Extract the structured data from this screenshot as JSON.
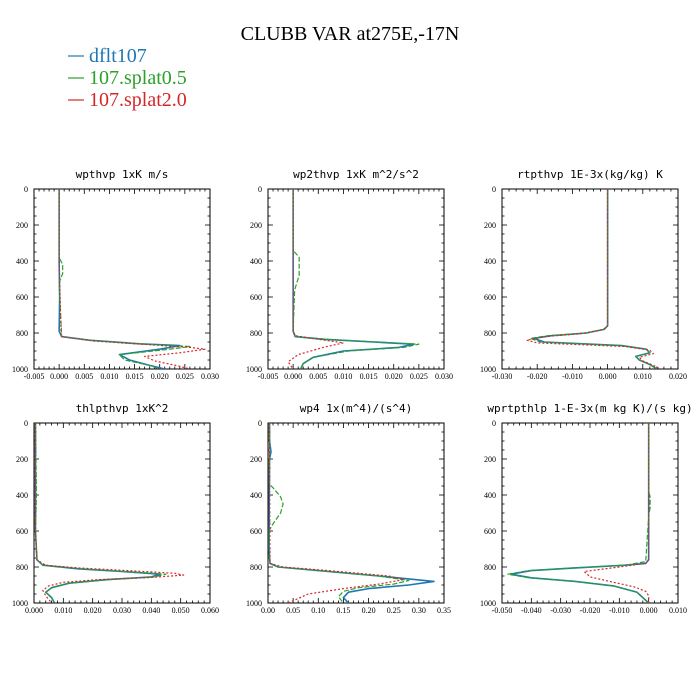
{
  "title": "CLUBB VAR at275E,-17N",
  "legend": [
    {
      "label": "dflt107",
      "color": "#1f77b4",
      "dash": "solid"
    },
    {
      "label": "107.splat0.5",
      "color": "#2ca02c",
      "dash": "long"
    },
    {
      "label": "107.splat2.0",
      "color": "#d62728",
      "dash": "short"
    }
  ],
  "chart_data": [
    {
      "type": "line",
      "title": "wpthvp  1xK m/s",
      "xlim": [
        -0.005,
        0.03
      ],
      "xticks": [
        -0.005,
        0.0,
        0.005,
        0.01,
        0.015,
        0.02,
        0.025,
        0.03
      ],
      "xtick_labels": [
        "-0.005",
        "0.000",
        "0.005",
        "0.010",
        "0.015",
        "0.020",
        "0.025",
        "0.030"
      ],
      "ylim": [
        1000,
        0
      ],
      "yticks": [
        0,
        200,
        400,
        600,
        800,
        1000
      ],
      "series": [
        {
          "name": "dflt107",
          "x": [
            0,
            0,
            0.0001,
            0,
            0.0005,
            0.006,
            0.016,
            0.024,
            0.02,
            0.012,
            0.014,
            0.018,
            0.021
          ],
          "y": [
            0,
            400,
            600,
            790,
            820,
            840,
            860,
            870,
            890,
            920,
            950,
            980,
            1000
          ]
        },
        {
          "name": "107.splat0.5",
          "x": [
            0,
            0,
            0.0007,
            0.0007,
            0,
            0.0005,
            0.006,
            0.016,
            0.026,
            0.022,
            0.012,
            0.013,
            0.018,
            0.02
          ],
          "y": [
            0,
            380,
            420,
            470,
            520,
            820,
            840,
            860,
            875,
            890,
            920,
            950,
            980,
            1000
          ]
        },
        {
          "name": "107.splat2.0",
          "x": [
            0,
            0,
            0.0004,
            0.007,
            0.018,
            0.026,
            0.029,
            0.024,
            0.017,
            0.019,
            0.024,
            0.026
          ],
          "y": [
            0,
            400,
            820,
            845,
            865,
            880,
            890,
            910,
            930,
            955,
            985,
            1000
          ]
        }
      ]
    },
    {
      "type": "line",
      "title": "wp2thvp  1xK m^2/s^2",
      "xlim": [
        -0.005,
        0.03
      ],
      "xticks": [
        -0.005,
        0.0,
        0.005,
        0.01,
        0.015,
        0.02,
        0.025,
        0.03
      ],
      "xtick_labels": [
        "-0.005",
        "0.000",
        "0.005",
        "0.010",
        "0.015",
        "0.020",
        "0.025",
        "0.030"
      ],
      "ylim": [
        1000,
        0
      ],
      "yticks": [
        0,
        200,
        400,
        600,
        800,
        1000
      ],
      "series": [
        {
          "name": "dflt107",
          "x": [
            0,
            0,
            0.0004,
            0.006,
            0.016,
            0.024,
            0.021,
            0.01,
            0.004,
            0.002,
            0.0015
          ],
          "y": [
            0,
            790,
            820,
            835,
            850,
            862,
            880,
            900,
            935,
            970,
            1000
          ]
        },
        {
          "name": "107.splat0.5",
          "x": [
            0,
            0,
            0.0012,
            0.0012,
            0.0003,
            0,
            0.0005,
            0.007,
            0.017,
            0.025,
            0.022,
            0.011,
            0.004,
            0.002,
            0.0015
          ],
          "y": [
            0,
            340,
            380,
            480,
            560,
            790,
            820,
            835,
            850,
            862,
            880,
            900,
            935,
            970,
            1000
          ]
        },
        {
          "name": "107.splat2.0",
          "x": [
            0,
            0,
            0.0004,
            0.005,
            0.01,
            0.006,
            0.001,
            -0.001,
            0.0
          ],
          "y": [
            0,
            790,
            815,
            835,
            855,
            880,
            920,
            960,
            1000
          ]
        }
      ]
    },
    {
      "type": "line",
      "title": "rtpthvp  1E-3x(kg/kg) K",
      "xlim": [
        -0.03,
        0.02
      ],
      "xticks": [
        -0.03,
        -0.02,
        -0.01,
        0.0,
        0.01,
        0.02
      ],
      "xtick_labels": [
        "-0.030",
        "-0.020",
        "-0.010",
        "0.000",
        "0.010",
        "0.020"
      ],
      "ylim": [
        1000,
        0
      ],
      "yticks": [
        0,
        200,
        400,
        600,
        800,
        1000
      ],
      "series": [
        {
          "name": "dflt107",
          "x": [
            0,
            0,
            -0.001,
            -0.006,
            -0.016,
            -0.021,
            -0.018,
            0.004,
            0.011,
            0.012,
            0.008,
            0.009,
            0.012,
            0.014
          ],
          "y": [
            0,
            760,
            780,
            800,
            815,
            830,
            850,
            870,
            890,
            910,
            930,
            950,
            975,
            1000
          ]
        },
        {
          "name": "107.splat0.5",
          "x": [
            0,
            0,
            -0.001,
            -0.006,
            -0.017,
            -0.022,
            -0.019,
            0.004,
            0.011,
            0.012,
            0.008,
            0.009,
            0.012,
            0.014
          ],
          "y": [
            0,
            760,
            780,
            800,
            815,
            830,
            850,
            870,
            890,
            910,
            930,
            950,
            975,
            1000
          ]
        },
        {
          "name": "107.splat2.0",
          "x": [
            0,
            0,
            -0.0012,
            -0.008,
            -0.018,
            -0.023,
            -0.02,
            0.005,
            0.012,
            0.013,
            0.009,
            0.01,
            0.013,
            0.015
          ],
          "y": [
            0,
            760,
            780,
            805,
            820,
            840,
            855,
            875,
            895,
            915,
            935,
            955,
            980,
            1000
          ]
        }
      ]
    },
    {
      "type": "line",
      "title": "thlpthvp  1xK^2",
      "xlim": [
        0.0,
        0.06
      ],
      "xticks": [
        0.0,
        0.01,
        0.02,
        0.03,
        0.04,
        0.05,
        0.06
      ],
      "xtick_labels": [
        "0.000",
        "0.010",
        "0.020",
        "0.030",
        "0.040",
        "0.050",
        "0.060"
      ],
      "ylim": [
        1000,
        0
      ],
      "yticks": [
        0,
        200,
        400,
        600,
        800,
        1000
      ],
      "series": [
        {
          "name": "dflt107",
          "x": [
            0.0005,
            0.0005,
            0.001,
            0.003,
            0.015,
            0.03,
            0.043,
            0.04,
            0.025,
            0.012,
            0.006,
            0.004,
            0.006,
            0.007
          ],
          "y": [
            0,
            600,
            760,
            790,
            810,
            825,
            840,
            855,
            870,
            890,
            915,
            940,
            970,
            1000
          ]
        },
        {
          "name": "107.splat0.5",
          "x": [
            0.0005,
            0.0008,
            0.0008,
            0.0005,
            0.001,
            0.003,
            0.016,
            0.031,
            0.045,
            0.041,
            0.026,
            0.012,
            0.006,
            0.004,
            0.006,
            0.007
          ],
          "y": [
            0,
            340,
            420,
            600,
            760,
            790,
            810,
            825,
            840,
            855,
            870,
            890,
            915,
            940,
            970,
            1000
          ]
        },
        {
          "name": "107.splat2.0",
          "x": [
            0.0005,
            0.0005,
            0.001,
            0.004,
            0.015,
            0.032,
            0.048,
            0.051,
            0.04,
            0.022,
            0.01,
            0.005,
            0.003,
            0.004,
            0.006
          ],
          "y": [
            0,
            600,
            760,
            790,
            805,
            820,
            835,
            845,
            858,
            870,
            885,
            905,
            930,
            960,
            1000
          ]
        }
      ]
    },
    {
      "type": "line",
      "title": "wp4  1x(m^4)/(s^4)",
      "xlim": [
        0.0,
        0.35
      ],
      "xticks": [
        0.0,
        0.05,
        0.1,
        0.15,
        0.2,
        0.25,
        0.3,
        0.35
      ],
      "xtick_labels": [
        "0.00",
        "0.05",
        "0.10",
        "0.15",
        "0.20",
        "0.25",
        "0.30",
        "0.35"
      ],
      "ylim": [
        1000,
        0
      ],
      "yticks": [
        0,
        200,
        400,
        600,
        800,
        1000
      ],
      "series": [
        {
          "name": "dflt107",
          "x": [
            0.003,
            0.003,
            0.006,
            0.003,
            0.002,
            0.004,
            0.02,
            0.1,
            0.22,
            0.33,
            0.28,
            0.2,
            0.16,
            0.15,
            0.16
          ],
          "y": [
            0,
            100,
            160,
            200,
            700,
            780,
            800,
            820,
            850,
            880,
            900,
            920,
            940,
            970,
            1000
          ]
        },
        {
          "name": "107.splat0.5",
          "x": [
            0.003,
            0.003,
            0.01,
            0.025,
            0.03,
            0.025,
            0.01,
            0.002,
            0.004,
            0.02,
            0.1,
            0.22,
            0.28,
            0.25,
            0.18,
            0.15,
            0.14,
            0.15
          ],
          "y": [
            0,
            340,
            360,
            410,
            450,
            500,
            560,
            600,
            780,
            800,
            820,
            850,
            875,
            895,
            915,
            935,
            965,
            1000
          ]
        },
        {
          "name": "107.splat2.0",
          "x": [
            0.003,
            0.003,
            0.004,
            0.03,
            0.12,
            0.24,
            0.27,
            0.22,
            0.15,
            0.08,
            0.04
          ],
          "y": [
            0,
            300,
            780,
            800,
            820,
            850,
            870,
            895,
            920,
            950,
            1000
          ]
        }
      ]
    },
    {
      "type": "line",
      "title": "wprtpthlp  1-E-3x(m kg K)/(s kg)",
      "xlim": [
        -0.05,
        0.01
      ],
      "xticks": [
        -0.05,
        -0.04,
        -0.03,
        -0.02,
        -0.01,
        0.0,
        0.01
      ],
      "xtick_labels": [
        "-0.050",
        "-0.040",
        "-0.030",
        "-0.020",
        "-0.010",
        "0.000",
        "0.010"
      ],
      "ylim": [
        1000,
        0
      ],
      "yticks": [
        0,
        200,
        400,
        600,
        800,
        1000
      ],
      "series": [
        {
          "name": "dflt107",
          "x": [
            0,
            0,
            -0.001,
            -0.008,
            -0.025,
            -0.04,
            -0.047,
            -0.04,
            -0.025,
            -0.012,
            -0.004,
            0.0
          ],
          "y": [
            0,
            760,
            780,
            790,
            805,
            820,
            840,
            860,
            880,
            905,
            940,
            1000
          ]
        },
        {
          "name": "107.splat0.5",
          "x": [
            0,
            0,
            0.0005,
            0.0005,
            0,
            -0.001,
            -0.008,
            -0.026,
            -0.041,
            -0.048,
            -0.041,
            -0.025,
            -0.012,
            -0.004,
            0.0
          ],
          "y": [
            0,
            380,
            410,
            470,
            520,
            770,
            790,
            805,
            820,
            840,
            860,
            880,
            905,
            940,
            1000
          ]
        },
        {
          "name": "107.splat2.0",
          "x": [
            0,
            0,
            -0.001,
            -0.01,
            -0.022,
            -0.02,
            -0.012,
            -0.005,
            -0.001,
            0.0,
            0.0
          ],
          "y": [
            0,
            760,
            780,
            800,
            825,
            855,
            885,
            910,
            935,
            960,
            1000
          ]
        }
      ]
    }
  ]
}
